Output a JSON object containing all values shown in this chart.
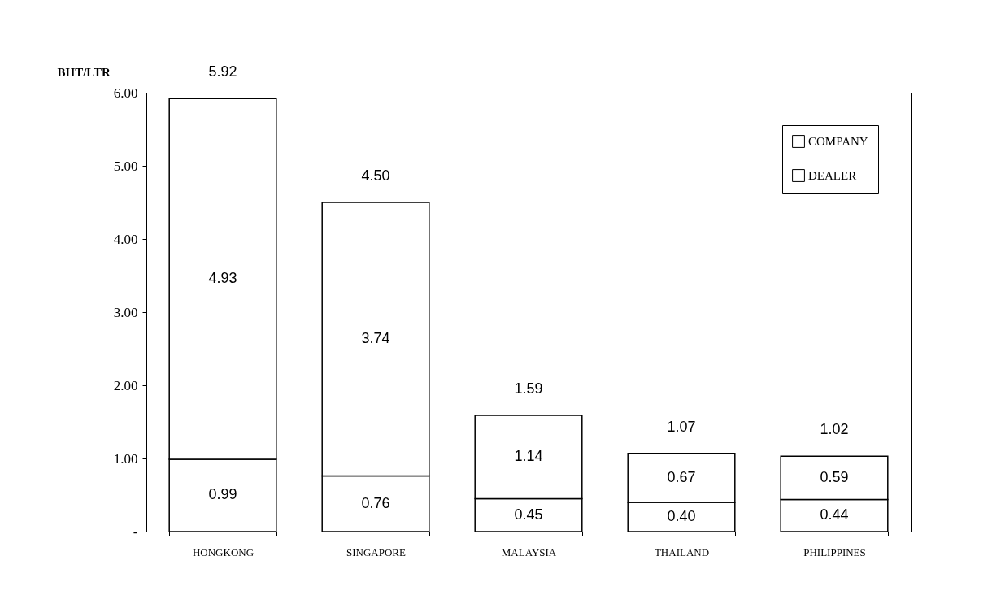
{
  "chart_data": {
    "type": "bar",
    "stacked": true,
    "ylabel": "BHT/LTR",
    "categories": [
      "HONGKONG",
      "SINGAPORE",
      "MALAYSIA",
      "THAILAND",
      "PHILIPPINES"
    ],
    "series": [
      {
        "name": "DEALER",
        "color": "#ffffff",
        "values": [
          0.99,
          0.76,
          0.45,
          0.4,
          0.44
        ],
        "value_labels": [
          "0.99",
          "0.76",
          "0.45",
          "0.40",
          "0.44"
        ]
      },
      {
        "name": "COMPANY",
        "color": "#ffffff",
        "values": [
          4.93,
          3.74,
          1.14,
          0.67,
          0.59
        ],
        "value_labels": [
          "4.93",
          "3.74",
          "1.14",
          "0.67",
          "0.59"
        ]
      }
    ],
    "totals": [
      "5.92",
      "4.50",
      "1.59",
      "1.07",
      "1.02"
    ],
    "ylim": [
      0,
      6
    ],
    "yticks": [
      {
        "value": 0,
        "label": "-"
      },
      {
        "value": 1,
        "label": "1.00"
      },
      {
        "value": 2,
        "label": "2.00"
      },
      {
        "value": 3,
        "label": "3.00"
      },
      {
        "value": 4,
        "label": "4.00"
      },
      {
        "value": 5,
        "label": "5.00"
      },
      {
        "value": 6,
        "label": "6.00"
      }
    ],
    "grid": false,
    "legend": "top right"
  }
}
